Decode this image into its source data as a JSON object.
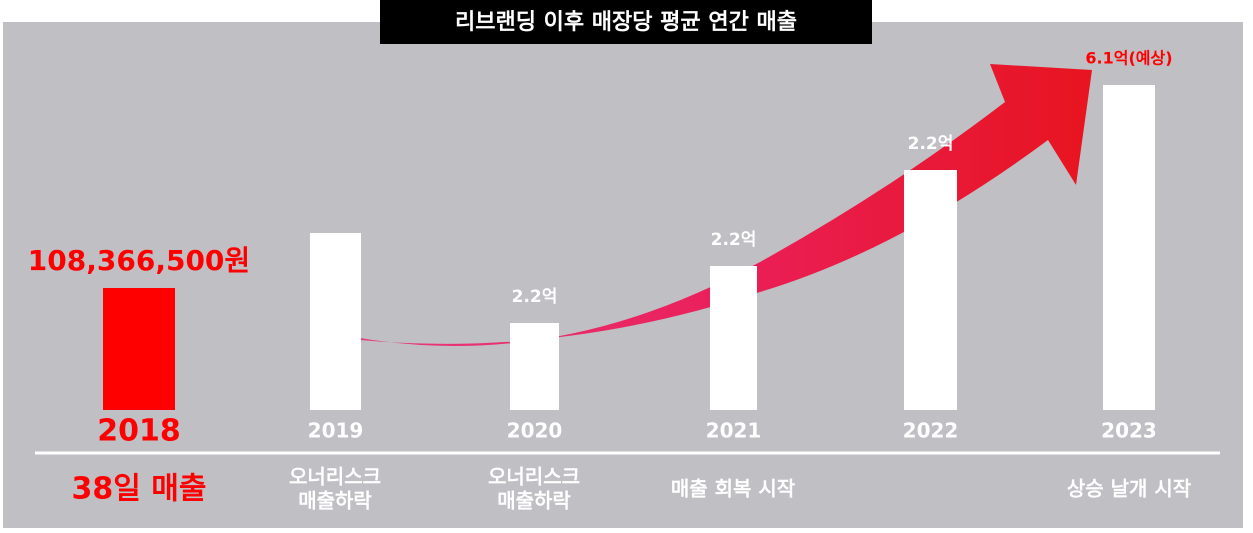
{
  "title": "리브랜딩 이후 매장당 평균 연간 매출",
  "columns": [
    {
      "year": "2018",
      "value_label": "108,366,500원",
      "note": [
        "38일 매출"
      ]
    },
    {
      "year": "2019",
      "note": [
        "오너리스크",
        "매출하락"
      ]
    },
    {
      "year": "2020",
      "value_label": "2.2억",
      "note": [
        "오너리스크",
        "매출하락"
      ]
    },
    {
      "year": "2021",
      "value_label": "2.2억",
      "note": [
        "매출 회복 시작"
      ]
    },
    {
      "year": "2022",
      "value_label": "2.2억"
    },
    {
      "year": "2023",
      "value_label": "6.1억(예상)",
      "note": [
        "상승 날개 시작"
      ]
    }
  ]
}
